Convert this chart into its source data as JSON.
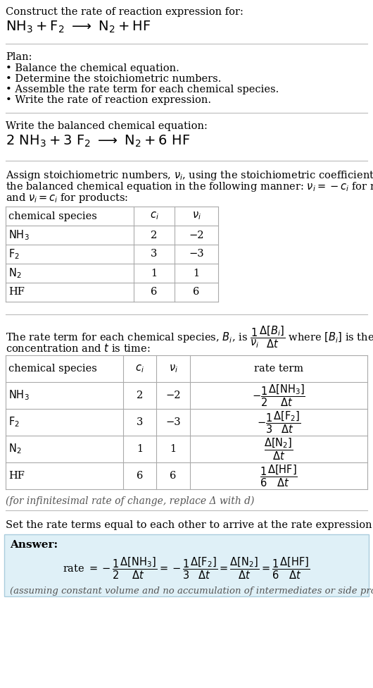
{
  "bg_color": "#ffffff",
  "answer_bg": "#dff0f7",
  "answer_border": "#aaccdd",
  "title_text": "Construct the rate of reaction expression for:",
  "plan_header": "Plan:",
  "plan_items": [
    "• Balance the chemical equation.",
    "• Determine the stoichiometric numbers.",
    "• Assemble the rate term for each chemical species.",
    "• Write the rate of reaction expression."
  ],
  "balanced_header": "Write the balanced chemical equation:",
  "stoich_intro_lines": [
    "Assign stoichiometric numbers, $\\nu_i$, using the stoichiometric coefficients, $c_i$, from",
    "the balanced chemical equation in the following manner: $\\nu_i = -c_i$ for reactants",
    "and $\\nu_i = c_i$ for products:"
  ],
  "table1_rows": [
    [
      "NH_3",
      "2",
      "−2"
    ],
    [
      "F_2",
      "3",
      "−3"
    ],
    [
      "N_2",
      "1",
      "1"
    ],
    [
      "HF",
      "6",
      "6"
    ]
  ],
  "table2_rows": [
    [
      "NH_3",
      "2",
      "−2"
    ],
    [
      "F_2",
      "3",
      "−3"
    ],
    [
      "N_2",
      "1",
      "1"
    ],
    [
      "HF",
      "6",
      "6"
    ]
  ],
  "infinitesimal_note": "(for infinitesimal rate of change, replace Δ with d)",
  "set_equal_text": "Set the rate terms equal to each other to arrive at the rate expression:",
  "answer_label": "Answer:",
  "answer_note": "(assuming constant volume and no accumulation of intermediates or side products)"
}
